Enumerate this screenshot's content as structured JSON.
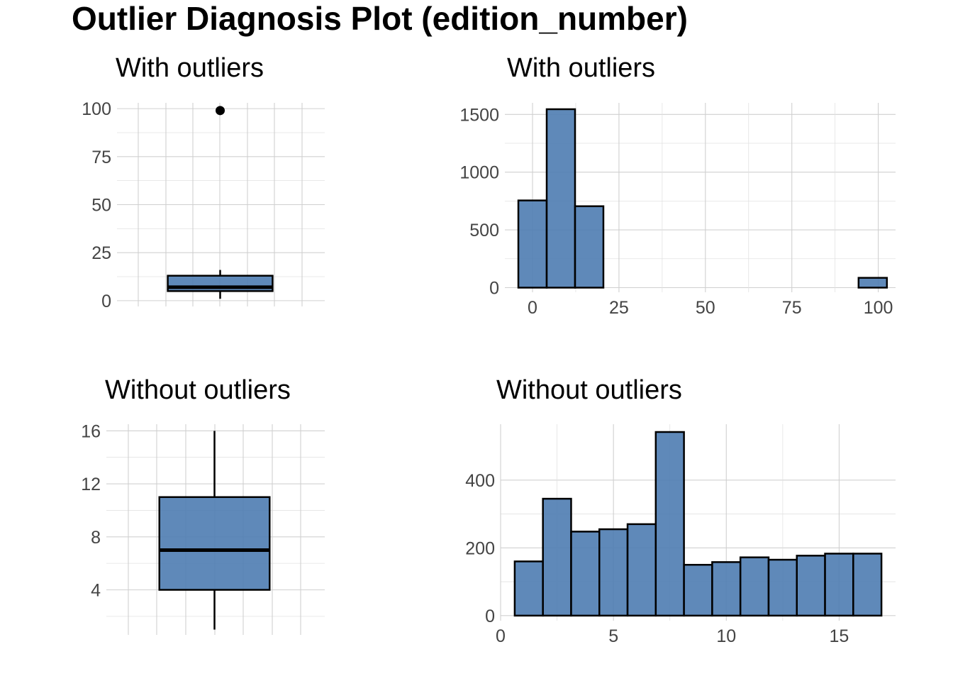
{
  "title": "Outlier Diagnosis Plot (edition_number)",
  "colors": {
    "fill": "#4e7cb1",
    "outline": "#000000",
    "grid": "#d0d0d0"
  },
  "chart_data": [
    {
      "type": "box",
      "title": "With outliers",
      "ylim": [
        -3,
        103
      ],
      "yticks": [
        0,
        25,
        50,
        75,
        100
      ],
      "yticklabels": [
        "0",
        "25",
        "50",
        "75",
        "100"
      ],
      "box": {
        "whisker_low": 1,
        "q1": 5,
        "median": 7,
        "q3": 13,
        "whisker_high": 16
      },
      "outliers": [
        99
      ]
    },
    {
      "type": "bar",
      "title": "With outliers",
      "xlim": [
        -8,
        105
      ],
      "ylim": [
        -40,
        1600
      ],
      "xticks": [
        0,
        25,
        50,
        75,
        100
      ],
      "xticklabels": [
        "0",
        "25",
        "50",
        "75",
        "100"
      ],
      "yticks": [
        0,
        500,
        1000,
        1500
      ],
      "yticklabels": [
        "0",
        "500",
        "1000",
        "1500"
      ],
      "bin_width": 8.2,
      "bin_centers": [
        0,
        8.2,
        16.4,
        24.6,
        32.8,
        41,
        49.2,
        57.4,
        65.6,
        73.8,
        82,
        90.2,
        98.4
      ],
      "counts": [
        755,
        1545,
        705,
        0,
        0,
        0,
        0,
        0,
        0,
        0,
        0,
        0,
        85
      ]
    },
    {
      "type": "box",
      "title": "Without outliers",
      "ylim": [
        0.6,
        16.5
      ],
      "yticks": [
        4,
        8,
        12,
        16
      ],
      "yticklabels": [
        "4",
        "8",
        "12",
        "16"
      ],
      "box": {
        "whisker_low": 1,
        "q1": 4,
        "median": 7,
        "q3": 11,
        "whisker_high": 16
      },
      "outliers": []
    },
    {
      "type": "bar",
      "title": "Without outliers",
      "xlim": [
        0,
        17.5
      ],
      "ylim": [
        -15,
        565
      ],
      "xticks": [
        0,
        5,
        10,
        15
      ],
      "xticklabels": [
        "0",
        "5",
        "10",
        "15"
      ],
      "yticks": [
        0,
        200,
        400
      ],
      "yticklabels": [
        "0",
        "200",
        "400"
      ],
      "bin_width": 1.25,
      "bin_centers": [
        1.25,
        2.5,
        3.75,
        5,
        6.25,
        7.5,
        8.75,
        10,
        11.25,
        12.5,
        13.75,
        15,
        16.25
      ],
      "counts": [
        160,
        345,
        248,
        255,
        270,
        542,
        150,
        158,
        172,
        165,
        177,
        183,
        183
      ]
    }
  ]
}
